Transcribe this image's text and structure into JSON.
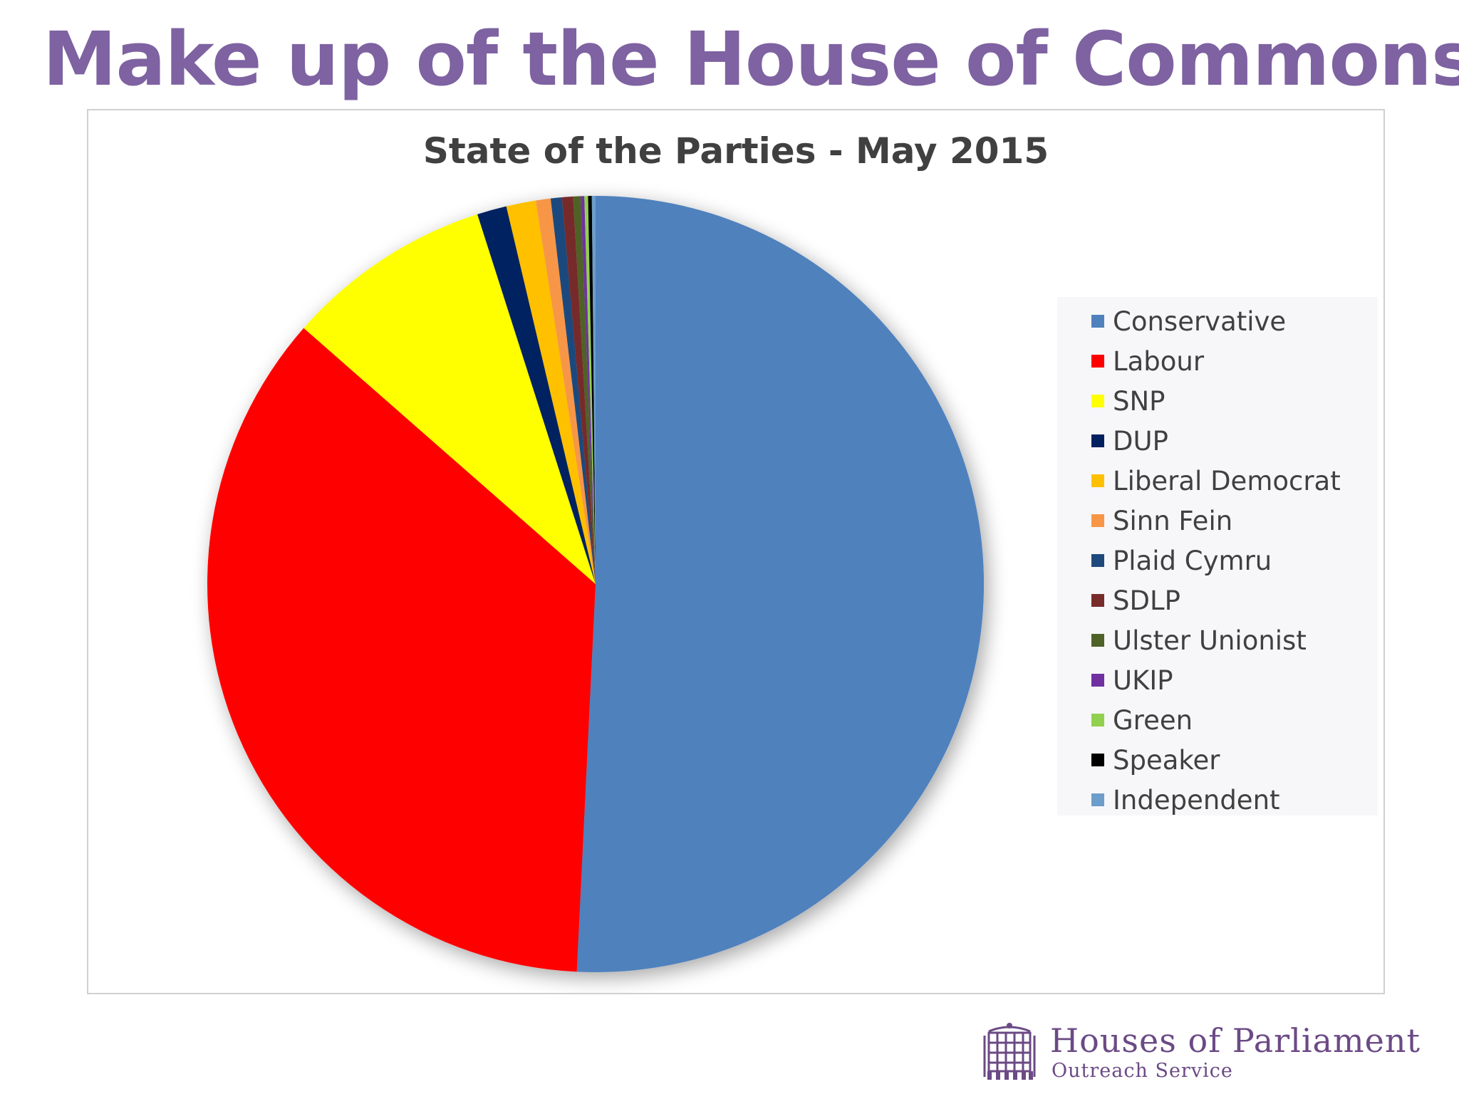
{
  "slide": {
    "title": "Make up of the House of Commons"
  },
  "logo": {
    "name": "Houses of Parliament",
    "subtitle": "Outreach Service",
    "icon": "portcullis-icon"
  },
  "chart_data": {
    "type": "pie",
    "title": "State of the Parties - May 2015",
    "legend_position": "right",
    "categories": [
      "Conservative",
      "Labour",
      "SNP",
      "DUP",
      "Liberal Democrat",
      "Sinn Fein",
      "Plaid Cymru",
      "SDLP",
      "Ulster Unionist",
      "UKIP",
      "Green",
      "Speaker",
      "Independent"
    ],
    "values": [
      330,
      232,
      56,
      8,
      8,
      4,
      3,
      3,
      2,
      1,
      1,
      1,
      1
    ],
    "colors": [
      "#4f81bd",
      "#ff0000",
      "#ffff00",
      "#002060",
      "#ffc000",
      "#f79646",
      "#1f497d",
      "#772c2a",
      "#4f6228",
      "#7030a0",
      "#92d050",
      "#000000",
      "#6d9dca"
    ]
  }
}
